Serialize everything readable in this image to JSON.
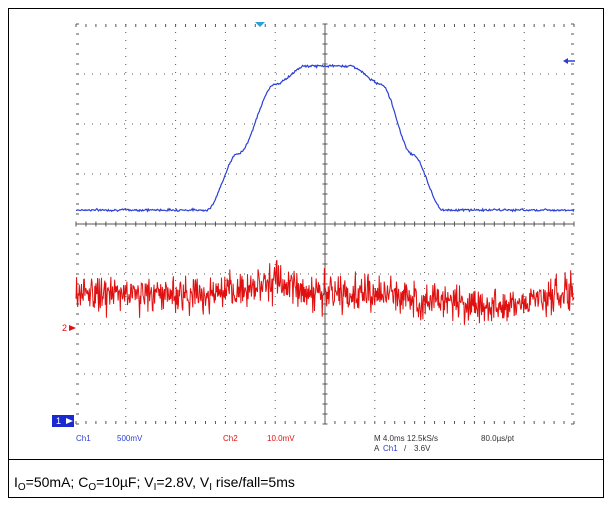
{
  "chart_data": {
    "type": "line",
    "title": "",
    "xlabel": "",
    "ylabel": "",
    "x_divisions": 10,
    "y_divisions": 8,
    "xlim": [
      -20,
      20
    ],
    "time_unit": "ms",
    "grid": true,
    "colors": {
      "ch1": "#2b3fd6",
      "ch2": "#e01010",
      "graticule": "#555555",
      "ch1_marker": "#1a2ad0"
    },
    "channel_markers": {
      "ch1_label": "1",
      "ch2_label": "2"
    },
    "series": [
      {
        "channel": "Ch1",
        "scale_label": "500mV",
        "unit": "V",
        "ylim": [
          -0.1,
          3.9
        ],
        "x": [
          -20,
          -9.5,
          -7,
          -4,
          -1.5,
          0,
          2,
          4.5,
          7,
          9.5,
          20
        ],
        "values": [
          2.04,
          2.04,
          2.6,
          3.3,
          3.48,
          3.48,
          3.48,
          3.3,
          2.6,
          2.04,
          2.04
        ]
      },
      {
        "channel": "Ch2",
        "scale_label": "10.0mV",
        "unit": "mV",
        "offset_div": 1.4,
        "x": [
          -20,
          -8,
          -4.5,
          0,
          4,
          9,
          13,
          20
        ],
        "values": [
          0,
          0,
          2.5,
          0,
          0,
          -1.2,
          -2.4,
          0
        ]
      }
    ]
  },
  "readouts": {
    "ch1_name": "Ch1",
    "ch1_scale": "500mV",
    "ch2_name": "Ch2",
    "ch2_scale": "10.0mV",
    "timebase": "M 4.0ms 12.5kS/s",
    "sample_interval": "80.0µs/pt",
    "trigger_prefix": "A",
    "trigger_source": "Ch1",
    "trigger_slope": "/",
    "trigger_level": "3.6V"
  },
  "caption": {
    "io_label": "I",
    "io_sub": "O",
    "io_value": "=50mA; ",
    "co_label": "C",
    "co_sub": "O",
    "co_value": "=10µF; ",
    "vi_label": "V",
    "vi_sub": "I",
    "vi_value": "=2.8V, ",
    "vi2_label": "V",
    "vi2_sub": "I",
    "vi2_value": " rise/fall=5ms"
  }
}
